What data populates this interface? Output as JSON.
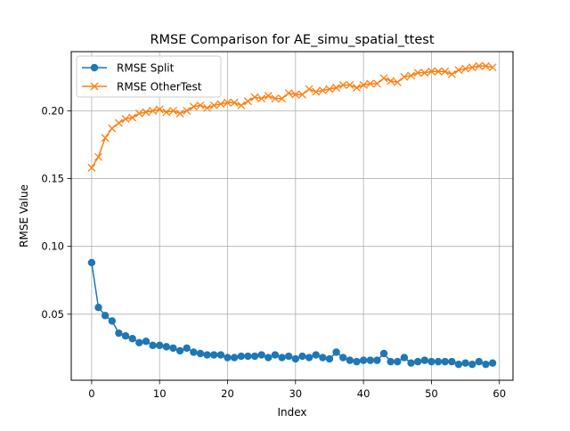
{
  "chart_data": {
    "type": "line",
    "title": "RMSE Comparison for AE_simu_spatial_ttest",
    "xlabel": "Index",
    "ylabel": "RMSE Value",
    "xlim": [
      -3,
      62
    ],
    "ylim": [
      0.0013,
      0.2436
    ],
    "grid": true,
    "legend_position": "upper-left",
    "x": [
      0,
      1,
      2,
      3,
      4,
      5,
      6,
      7,
      8,
      9,
      10,
      11,
      12,
      13,
      14,
      15,
      16,
      17,
      18,
      19,
      20,
      21,
      22,
      23,
      24,
      25,
      26,
      27,
      28,
      29,
      30,
      31,
      32,
      33,
      34,
      35,
      36,
      37,
      38,
      39,
      40,
      41,
      42,
      43,
      44,
      45,
      46,
      47,
      48,
      49,
      50,
      51,
      52,
      53,
      54,
      55,
      56,
      57,
      58,
      59
    ],
    "x_ticks": [
      0,
      10,
      20,
      30,
      40,
      50,
      60
    ],
    "y_ticks": [
      0.05,
      0.1,
      0.15,
      0.2
    ],
    "x_tick_labels": [
      "0",
      "10",
      "20",
      "30",
      "40",
      "50",
      "60"
    ],
    "y_tick_labels": [
      "0.05",
      "0.10",
      "0.15",
      "0.20"
    ],
    "series": [
      {
        "name": "RMSE Split",
        "color": "#1f77b4",
        "marker": "circle",
        "values": [
          0.088,
          0.055,
          0.049,
          0.045,
          0.036,
          0.034,
          0.032,
          0.029,
          0.03,
          0.027,
          0.027,
          0.026,
          0.025,
          0.023,
          0.025,
          0.022,
          0.021,
          0.02,
          0.02,
          0.02,
          0.018,
          0.018,
          0.019,
          0.019,
          0.019,
          0.02,
          0.018,
          0.02,
          0.018,
          0.019,
          0.017,
          0.019,
          0.018,
          0.02,
          0.018,
          0.017,
          0.022,
          0.018,
          0.016,
          0.015,
          0.016,
          0.016,
          0.016,
          0.021,
          0.015,
          0.015,
          0.018,
          0.014,
          0.015,
          0.016,
          0.015,
          0.015,
          0.015,
          0.015,
          0.013,
          0.014,
          0.013,
          0.015,
          0.013,
          0.014
        ]
      },
      {
        "name": "RMSE OtherTest",
        "color": "#ff7f0e",
        "marker": "x",
        "values": [
          0.158,
          0.166,
          0.18,
          0.187,
          0.191,
          0.194,
          0.195,
          0.198,
          0.199,
          0.2,
          0.201,
          0.199,
          0.2,
          0.198,
          0.2,
          0.203,
          0.204,
          0.202,
          0.204,
          0.205,
          0.206,
          0.206,
          0.204,
          0.207,
          0.21,
          0.209,
          0.211,
          0.209,
          0.209,
          0.213,
          0.212,
          0.212,
          0.216,
          0.214,
          0.215,
          0.216,
          0.217,
          0.219,
          0.219,
          0.217,
          0.219,
          0.22,
          0.22,
          0.224,
          0.222,
          0.221,
          0.225,
          0.226,
          0.228,
          0.228,
          0.229,
          0.229,
          0.229,
          0.227,
          0.23,
          0.231,
          0.232,
          0.233,
          0.233,
          0.232
        ]
      }
    ]
  }
}
